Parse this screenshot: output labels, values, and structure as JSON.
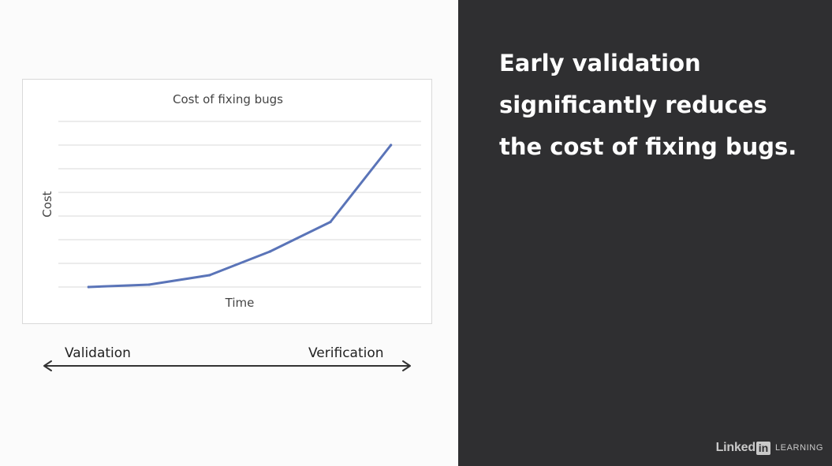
{
  "slide": {
    "headline": "Early validation significantly reduces the cost of fixing bugs.",
    "range_labels": {
      "left": "Validation",
      "right": "Verification"
    },
    "logo": {
      "linked": "Linked",
      "in": "in",
      "learning": "LEARNING"
    },
    "colors": {
      "dark_panel": "#2f2f31",
      "line_series": "#5a74b8",
      "gridlines": "#d9d9d9",
      "text_dark": "#222222",
      "text_light": "#ffffff"
    }
  },
  "chart_data": {
    "type": "line",
    "title": "Cost of fixing bugs",
    "xlabel": "Time",
    "ylabel": "Cost",
    "x": [
      1,
      2,
      3,
      4,
      5,
      6
    ],
    "y": [
      0,
      0.1,
      0.5,
      1.5,
      2.75,
      6
    ],
    "xlim": [
      0.5,
      6.5
    ],
    "ylim": [
      0,
      7
    ],
    "grid": true,
    "legend": "none"
  }
}
